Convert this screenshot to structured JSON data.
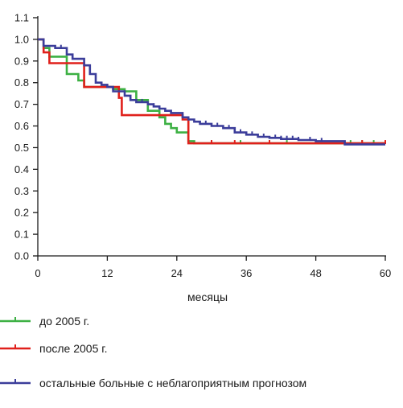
{
  "chart_data": {
    "type": "line",
    "xlabel": "месяцы",
    "ylabel": "",
    "xlim": [
      0,
      60
    ],
    "ylim": [
      0,
      1.1
    ],
    "xticks": [
      0,
      12,
      24,
      36,
      48,
      60
    ],
    "yticks": [
      "0.0",
      "0.1",
      "0.2",
      "0.3",
      "0.4",
      "0.5",
      "0.6",
      "0.7",
      "0.8",
      "0.9",
      "1.0",
      "1.1"
    ],
    "grid": false,
    "legend_position": "bottom",
    "series": [
      {
        "name": "до 2005 г.",
        "color": "#3cb043",
        "step": true,
        "points": [
          [
            0,
            1.0
          ],
          [
            1,
            0.96
          ],
          [
            2,
            0.92
          ],
          [
            5,
            0.84
          ],
          [
            7,
            0.81
          ],
          [
            8,
            0.78
          ],
          [
            13,
            0.77
          ],
          [
            15,
            0.76
          ],
          [
            17,
            0.72
          ],
          [
            19,
            0.67
          ],
          [
            21,
            0.64
          ],
          [
            22,
            0.61
          ],
          [
            23,
            0.59
          ],
          [
            24,
            0.57
          ],
          [
            26,
            0.53
          ],
          [
            27,
            0.52
          ],
          [
            60,
            0.52
          ]
        ],
        "censored": [
          30,
          35,
          40,
          43,
          54,
          56,
          58
        ]
      },
      {
        "name": "после 2005 г.",
        "color": "#e0201b",
        "step": true,
        "points": [
          [
            0,
            1.0
          ],
          [
            1,
            0.94
          ],
          [
            2,
            0.89
          ],
          [
            6,
            0.89
          ],
          [
            8,
            0.78
          ],
          [
            14,
            0.73
          ],
          [
            14.5,
            0.65
          ],
          [
            20,
            0.65
          ],
          [
            24,
            0.65
          ],
          [
            25,
            0.63
          ],
          [
            26,
            0.52
          ],
          [
            60,
            0.52
          ]
        ],
        "censored": [
          8,
          30,
          34,
          40,
          56,
          60
        ]
      },
      {
        "name": "остальные больные с неблагоприятным прогнозом",
        "color": "#3b3d9a",
        "step": true,
        "points": [
          [
            0,
            1.0
          ],
          [
            1,
            0.97
          ],
          [
            3,
            0.96
          ],
          [
            5,
            0.93
          ],
          [
            6,
            0.91
          ],
          [
            8,
            0.88
          ],
          [
            9,
            0.84
          ],
          [
            10,
            0.8
          ],
          [
            11,
            0.79
          ],
          [
            12,
            0.78
          ],
          [
            13,
            0.76
          ],
          [
            15,
            0.74
          ],
          [
            16,
            0.72
          ],
          [
            17,
            0.71
          ],
          [
            19,
            0.7
          ],
          [
            20,
            0.69
          ],
          [
            21,
            0.68
          ],
          [
            22,
            0.67
          ],
          [
            23,
            0.66
          ],
          [
            25,
            0.64
          ],
          [
            26,
            0.63
          ],
          [
            27,
            0.62
          ],
          [
            28,
            0.61
          ],
          [
            30,
            0.6
          ],
          [
            32,
            0.59
          ],
          [
            34,
            0.57
          ],
          [
            36,
            0.56
          ],
          [
            38,
            0.55
          ],
          [
            40,
            0.545
          ],
          [
            42,
            0.54
          ],
          [
            45,
            0.535
          ],
          [
            48,
            0.53
          ],
          [
            53,
            0.515
          ],
          [
            60,
            0.515
          ]
        ],
        "censored": [
          4,
          12,
          16,
          18,
          20,
          23,
          25,
          29,
          31,
          33,
          35,
          37,
          39,
          41,
          42,
          43,
          44,
          45,
          47,
          49
        ]
      }
    ]
  }
}
